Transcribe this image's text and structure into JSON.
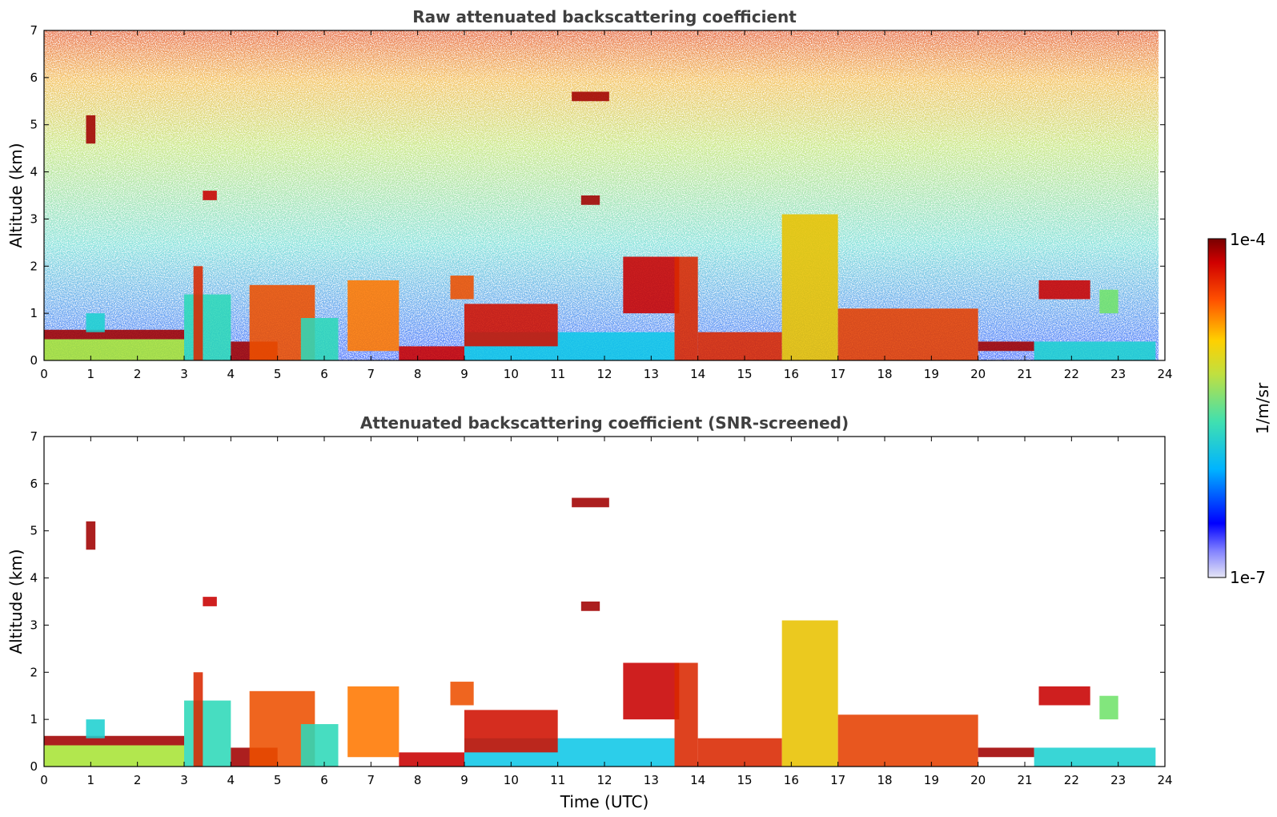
{
  "chart_data": [
    {
      "type": "heatmap",
      "title": "Raw attenuated backscattering coefficient",
      "xlabel": "",
      "ylabel": "Altitude (km)",
      "xlim": [
        0,
        24
      ],
      "ylim": [
        0,
        7
      ],
      "xticks": [
        "0",
        "1",
        "2",
        "3",
        "4",
        "5",
        "6",
        "7",
        "8",
        "9",
        "10",
        "11",
        "12",
        "13",
        "14",
        "15",
        "16",
        "17",
        "18",
        "19",
        "20",
        "21",
        "22",
        "23",
        "24"
      ],
      "yticks": [
        "0",
        "1",
        "2",
        "3",
        "4",
        "5",
        "6",
        "7"
      ],
      "grid": false,
      "layers": [
        {
          "x0": 0.0,
          "x1": 3.0,
          "y0": 0.0,
          "y1": 0.45,
          "level": 0.55
        },
        {
          "x0": 0.0,
          "x1": 3.0,
          "y0": 0.45,
          "y1": 0.65,
          "level": 0.95
        },
        {
          "x0": 0.9,
          "x1": 1.3,
          "y0": 0.6,
          "y1": 1.0,
          "level": 0.35
        },
        {
          "x0": 3.0,
          "x1": 4.0,
          "y0": 0.0,
          "y1": 1.4,
          "level": 0.4
        },
        {
          "x0": 3.2,
          "x1": 3.4,
          "y0": 0.0,
          "y1": 2.0,
          "level": 0.85
        },
        {
          "x0": 4.0,
          "x1": 5.0,
          "y0": 0.0,
          "y1": 0.4,
          "level": 0.95
        },
        {
          "x0": 4.4,
          "x1": 5.8,
          "y0": 0.0,
          "y1": 1.6,
          "level": 0.8
        },
        {
          "x0": 5.5,
          "x1": 6.3,
          "y0": 0.0,
          "y1": 0.9,
          "level": 0.4
        },
        {
          "x0": 6.5,
          "x1": 7.6,
          "y0": 0.2,
          "y1": 1.7,
          "level": 0.75
        },
        {
          "x0": 7.6,
          "x1": 9.0,
          "y0": 0.0,
          "y1": 0.3,
          "level": 0.9
        },
        {
          "x0": 8.7,
          "x1": 9.2,
          "y0": 1.3,
          "y1": 1.8,
          "level": 0.8
        },
        {
          "x0": 9.0,
          "x1": 13.5,
          "y0": 0.0,
          "y1": 0.6,
          "level": 0.3
        },
        {
          "x0": 9.0,
          "x1": 11.0,
          "y0": 0.3,
          "y1": 1.2,
          "level": 0.88
        },
        {
          "x0": 12.4,
          "x1": 13.6,
          "y0": 1.0,
          "y1": 2.2,
          "level": 0.9
        },
        {
          "x0": 13.5,
          "x1": 14.0,
          "y0": 0.0,
          "y1": 2.2,
          "level": 0.85
        },
        {
          "x0": 14.0,
          "x1": 15.8,
          "y0": 0.0,
          "y1": 0.6,
          "level": 0.85
        },
        {
          "x0": 15.8,
          "x1": 17.0,
          "y0": 0.0,
          "y1": 3.1,
          "level": 0.65
        },
        {
          "x0": 17.0,
          "x1": 20.0,
          "y0": 0.0,
          "y1": 1.1,
          "level": 0.82
        },
        {
          "x0": 20.0,
          "x1": 21.2,
          "y0": 0.2,
          "y1": 0.4,
          "level": 0.95
        },
        {
          "x0": 21.2,
          "x1": 23.8,
          "y0": 0.0,
          "y1": 0.4,
          "level": 0.35
        },
        {
          "x0": 21.3,
          "x1": 22.4,
          "y0": 1.3,
          "y1": 1.7,
          "level": 0.9
        },
        {
          "x0": 22.6,
          "x1": 23.0,
          "y0": 1.0,
          "y1": 1.5,
          "level": 0.5
        },
        {
          "x0": 11.3,
          "x1": 12.1,
          "y0": 5.5,
          "y1": 5.7,
          "level": 0.95
        },
        {
          "x0": 11.5,
          "x1": 11.9,
          "y0": 3.3,
          "y1": 3.5,
          "level": 0.95
        },
        {
          "x0": 0.9,
          "x1": 1.1,
          "y0": 4.6,
          "y1": 5.2,
          "level": 0.95
        },
        {
          "x0": 3.4,
          "x1": 3.7,
          "y0": 3.4,
          "y1": 3.6,
          "level": 0.9
        }
      ]
    },
    {
      "type": "heatmap",
      "title": "Attenuated backscattering coefficient (SNR-screened)",
      "xlabel": "Time (UTC)",
      "ylabel": "Altitude (km)",
      "xlim": [
        0,
        24
      ],
      "ylim": [
        0,
        7
      ],
      "xticks": [
        "0",
        "1",
        "2",
        "3",
        "4",
        "5",
        "6",
        "7",
        "8",
        "9",
        "10",
        "11",
        "12",
        "13",
        "14",
        "15",
        "16",
        "17",
        "18",
        "19",
        "20",
        "21",
        "22",
        "23",
        "24"
      ],
      "yticks": [
        "0",
        "1",
        "2",
        "3",
        "4",
        "5",
        "6",
        "7"
      ],
      "grid": false,
      "layers": [
        {
          "x0": 0.0,
          "x1": 3.0,
          "y0": 0.0,
          "y1": 0.45,
          "level": 0.55
        },
        {
          "x0": 0.0,
          "x1": 3.0,
          "y0": 0.45,
          "y1": 0.65,
          "level": 0.95
        },
        {
          "x0": 0.9,
          "x1": 1.3,
          "y0": 0.6,
          "y1": 1.0,
          "level": 0.35
        },
        {
          "x0": 3.0,
          "x1": 4.0,
          "y0": 0.0,
          "y1": 1.4,
          "level": 0.4
        },
        {
          "x0": 3.2,
          "x1": 3.4,
          "y0": 0.0,
          "y1": 2.0,
          "level": 0.85
        },
        {
          "x0": 4.0,
          "x1": 5.0,
          "y0": 0.0,
          "y1": 0.4,
          "level": 0.95
        },
        {
          "x0": 4.4,
          "x1": 5.8,
          "y0": 0.0,
          "y1": 1.6,
          "level": 0.8
        },
        {
          "x0": 5.5,
          "x1": 6.3,
          "y0": 0.0,
          "y1": 0.9,
          "level": 0.4
        },
        {
          "x0": 6.5,
          "x1": 7.6,
          "y0": 0.2,
          "y1": 1.7,
          "level": 0.75
        },
        {
          "x0": 7.6,
          "x1": 9.0,
          "y0": 0.0,
          "y1": 0.3,
          "level": 0.9
        },
        {
          "x0": 8.7,
          "x1": 9.2,
          "y0": 1.3,
          "y1": 1.8,
          "level": 0.8
        },
        {
          "x0": 9.0,
          "x1": 13.5,
          "y0": 0.0,
          "y1": 0.6,
          "level": 0.3
        },
        {
          "x0": 9.0,
          "x1": 11.0,
          "y0": 0.3,
          "y1": 1.2,
          "level": 0.88
        },
        {
          "x0": 12.4,
          "x1": 13.6,
          "y0": 1.0,
          "y1": 2.2,
          "level": 0.9
        },
        {
          "x0": 13.5,
          "x1": 14.0,
          "y0": 0.0,
          "y1": 2.2,
          "level": 0.85
        },
        {
          "x0": 14.0,
          "x1": 15.8,
          "y0": 0.0,
          "y1": 0.6,
          "level": 0.85
        },
        {
          "x0": 15.8,
          "x1": 17.0,
          "y0": 0.0,
          "y1": 3.1,
          "level": 0.65
        },
        {
          "x0": 17.0,
          "x1": 20.0,
          "y0": 0.0,
          "y1": 1.1,
          "level": 0.82
        },
        {
          "x0": 20.0,
          "x1": 21.2,
          "y0": 0.2,
          "y1": 0.4,
          "level": 0.95
        },
        {
          "x0": 21.2,
          "x1": 23.8,
          "y0": 0.0,
          "y1": 0.4,
          "level": 0.35
        },
        {
          "x0": 21.3,
          "x1": 22.4,
          "y0": 1.3,
          "y1": 1.7,
          "level": 0.9
        },
        {
          "x0": 22.6,
          "x1": 23.0,
          "y0": 1.0,
          "y1": 1.5,
          "level": 0.5
        },
        {
          "x0": 11.3,
          "x1": 12.1,
          "y0": 5.5,
          "y1": 5.7,
          "level": 0.95
        },
        {
          "x0": 11.5,
          "x1": 11.9,
          "y0": 3.3,
          "y1": 3.5,
          "level": 0.95
        },
        {
          "x0": 0.9,
          "x1": 1.1,
          "y0": 4.6,
          "y1": 5.2,
          "level": 0.95
        },
        {
          "x0": 3.4,
          "x1": 3.7,
          "y0": 3.4,
          "y1": 3.6,
          "level": 0.9
        }
      ]
    }
  ],
  "colorbar": {
    "max_label": "1e-4",
    "min_label": "1e-7",
    "unit_label": "1/m/sr",
    "colormap": "jet",
    "colors": [
      "#e6e6f5",
      "#0000ff",
      "#00c8ff",
      "#50e6a0",
      "#e6e600",
      "#ff6400",
      "#c80000",
      "#780000"
    ]
  }
}
